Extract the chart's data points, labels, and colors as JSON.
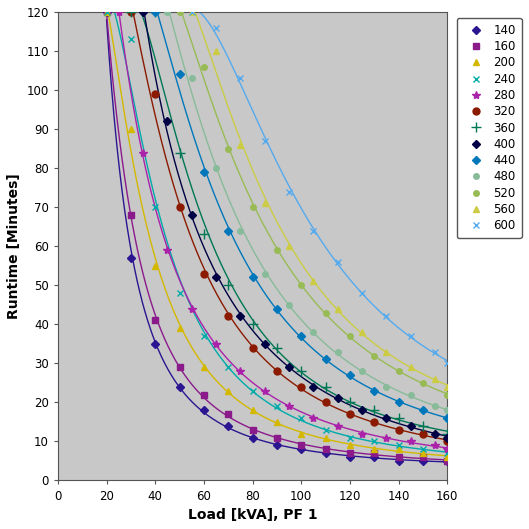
{
  "xlabel": "Load [kVA], PF 1",
  "ylabel": "Runtime [Minutes]",
  "xlim": [
    0,
    160
  ],
  "ylim": [
    0,
    120
  ],
  "xticks": [
    0,
    20,
    40,
    60,
    80,
    100,
    120,
    140,
    160
  ],
  "yticks": [
    0,
    10,
    20,
    30,
    40,
    50,
    60,
    70,
    80,
    90,
    100,
    110,
    120
  ],
  "plot_bg_color": "#c8c8c8",
  "fig_bg_color": "#ffffff",
  "series": [
    {
      "label": "140",
      "color": "#2b1591",
      "marker": "D",
      "markersize": 4,
      "data_x": [
        20,
        30,
        40,
        50,
        60,
        70,
        80,
        90,
        100,
        110,
        120,
        130,
        140,
        150,
        160
      ],
      "data_y": [
        120,
        57,
        35,
        24,
        18,
        14,
        11,
        9,
        8,
        7,
        6,
        6,
        5,
        5,
        5
      ]
    },
    {
      "label": "160",
      "color": "#8b1a8b",
      "marker": "s",
      "markersize": 4,
      "data_x": [
        20,
        30,
        40,
        50,
        60,
        70,
        80,
        90,
        100,
        110,
        120,
        130,
        140,
        150,
        160
      ],
      "data_y": [
        120,
        68,
        41,
        29,
        22,
        17,
        13,
        11,
        9,
        8,
        7,
        7,
        6,
        6,
        5
      ]
    },
    {
      "label": "200",
      "color": "#d4b800",
      "marker": "^",
      "markersize": 5,
      "data_x": [
        20,
        30,
        40,
        50,
        60,
        70,
        80,
        90,
        100,
        110,
        120,
        130,
        140,
        150,
        160
      ],
      "data_y": [
        120,
        90,
        55,
        39,
        29,
        23,
        18,
        15,
        12,
        11,
        9,
        8,
        8,
        7,
        6
      ]
    },
    {
      "label": "240",
      "color": "#00aaaa",
      "marker": "x",
      "markersize": 5,
      "data_x": [
        20,
        30,
        40,
        50,
        60,
        70,
        80,
        90,
        100,
        110,
        120,
        130,
        140,
        150,
        160
      ],
      "data_y": [
        120,
        113,
        70,
        48,
        37,
        29,
        23,
        19,
        16,
        13,
        11,
        10,
        9,
        8,
        7
      ]
    },
    {
      "label": "280",
      "color": "#aa22aa",
      "marker": "*",
      "markersize": 6,
      "data_x": [
        25,
        35,
        45,
        55,
        65,
        75,
        85,
        95,
        105,
        115,
        125,
        135,
        145,
        155,
        160
      ],
      "data_y": [
        120,
        84,
        59,
        44,
        35,
        28,
        23,
        19,
        16,
        14,
        12,
        11,
        10,
        9,
        8
      ]
    },
    {
      "label": "320",
      "color": "#8b1a00",
      "marker": "o",
      "markersize": 5,
      "data_x": [
        30,
        40,
        50,
        60,
        70,
        80,
        90,
        100,
        110,
        120,
        130,
        140,
        150,
        160
      ],
      "data_y": [
        120,
        99,
        70,
        53,
        42,
        34,
        28,
        24,
        20,
        17,
        15,
        13,
        12,
        10
      ]
    },
    {
      "label": "360",
      "color": "#007755",
      "marker": "+",
      "markersize": 7,
      "data_x": [
        30,
        40,
        50,
        60,
        70,
        80,
        90,
        100,
        110,
        120,
        130,
        140,
        150,
        160
      ],
      "data_y": [
        120,
        120,
        84,
        63,
        50,
        40,
        34,
        28,
        24,
        20,
        18,
        16,
        14,
        12
      ]
    },
    {
      "label": "400",
      "color": "#000044",
      "marker": "D",
      "markersize": 4,
      "data_x": [
        35,
        45,
        55,
        65,
        75,
        85,
        95,
        105,
        115,
        125,
        135,
        145,
        155,
        160
      ],
      "data_y": [
        120,
        92,
        68,
        52,
        42,
        35,
        29,
        24,
        21,
        18,
        16,
        14,
        12,
        11
      ]
    },
    {
      "label": "440",
      "color": "#0077bb",
      "marker": "D",
      "markersize": 4,
      "data_x": [
        40,
        50,
        60,
        70,
        80,
        90,
        100,
        110,
        120,
        130,
        140,
        150,
        160
      ],
      "data_y": [
        120,
        104,
        79,
        64,
        52,
        44,
        37,
        31,
        27,
        23,
        20,
        18,
        16
      ]
    },
    {
      "label": "480",
      "color": "#88bb99",
      "marker": "o",
      "markersize": 4,
      "data_x": [
        45,
        55,
        65,
        75,
        85,
        95,
        105,
        115,
        125,
        135,
        145,
        155,
        160
      ],
      "data_y": [
        120,
        103,
        80,
        64,
        53,
        45,
        38,
        33,
        28,
        24,
        22,
        19,
        18
      ]
    },
    {
      "label": "520",
      "color": "#99bb55",
      "marker": "o",
      "markersize": 4,
      "data_x": [
        50,
        60,
        70,
        80,
        90,
        100,
        110,
        120,
        130,
        140,
        150,
        160
      ],
      "data_y": [
        120,
        106,
        85,
        70,
        59,
        50,
        43,
        37,
        32,
        28,
        25,
        22
      ]
    },
    {
      "label": "560",
      "color": "#cccc44",
      "marker": "^",
      "markersize": 5,
      "data_x": [
        55,
        65,
        75,
        85,
        95,
        105,
        115,
        125,
        135,
        145,
        155,
        160
      ],
      "data_y": [
        120,
        110,
        86,
        71,
        60,
        51,
        44,
        38,
        33,
        29,
        26,
        24
      ]
    },
    {
      "label": "600",
      "color": "#55aaee",
      "marker": "x",
      "markersize": 5,
      "data_x": [
        55,
        65,
        75,
        85,
        95,
        105,
        115,
        125,
        135,
        145,
        155,
        160
      ],
      "data_y": [
        120,
        116,
        103,
        87,
        74,
        64,
        56,
        48,
        42,
        37,
        33,
        30
      ]
    }
  ],
  "fig_width": 5.29,
  "fig_height": 5.29,
  "dpi": 100
}
